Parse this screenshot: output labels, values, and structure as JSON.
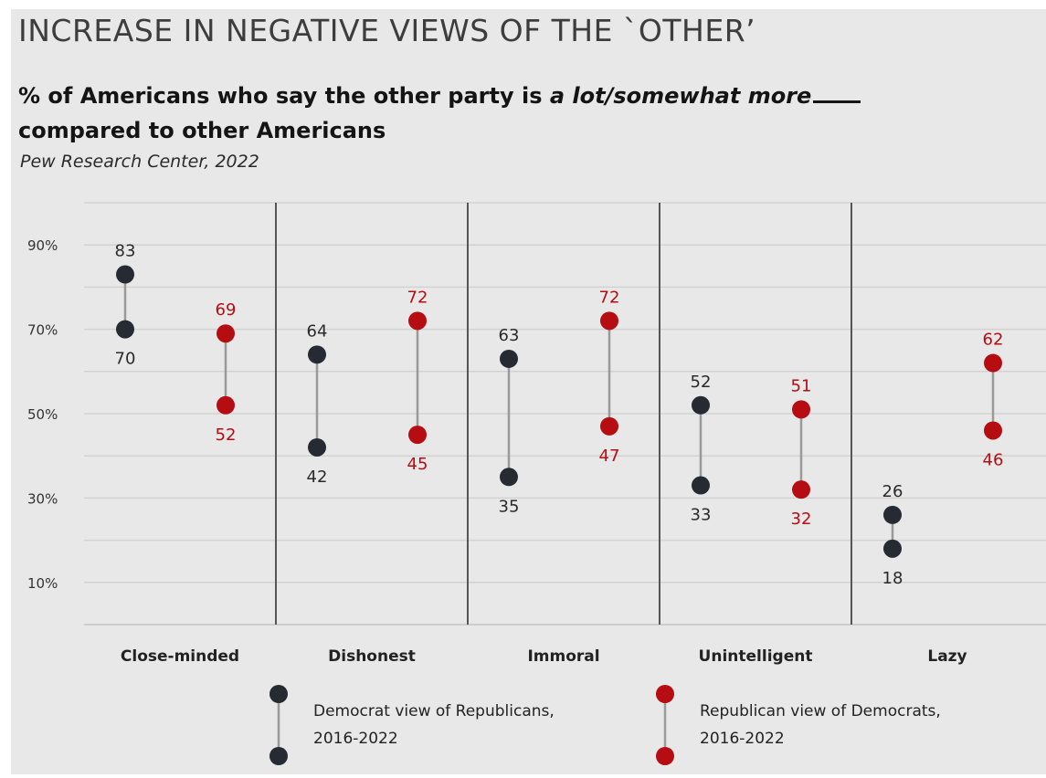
{
  "heading": {
    "title": "INCREASE IN NEGATIVE VIEWS OF THE `OTHER’",
    "subtitle_part1": "% of Americans who say the other party is ",
    "subtitle_emph": "a lot/somewhat more",
    "subtitle_part2": "compared to other Americans",
    "source": "Pew Research Center, 2022"
  },
  "colors": {
    "democrat": "#252a33",
    "republican": "#b50d12",
    "connector": "#9a9a9a",
    "grid": "#d2d2d2",
    "divider": "#555555",
    "background": "#e8e8e8"
  },
  "chart_data": {
    "type": "dumbbell",
    "categories": [
      "Close-minded",
      "Dishonest",
      "Immoral",
      "Unintelligent",
      "Lazy"
    ],
    "y_ticks": [
      10,
      30,
      50,
      70,
      90
    ],
    "y_tick_labels": [
      "10%",
      "30%",
      "50%",
      "70%",
      "90%"
    ],
    "ylim": [
      0,
      100
    ],
    "grid": true,
    "series": [
      {
        "name": "Democrat view of Republicans, 2016-2022",
        "start_2016": [
          70,
          42,
          35,
          33,
          18
        ],
        "end_2022": [
          83,
          64,
          63,
          52,
          26
        ]
      },
      {
        "name": "Republican view of Democrats, 2016-2022",
        "start_2016": [
          52,
          45,
          47,
          32,
          46
        ],
        "end_2022": [
          69,
          72,
          72,
          51,
          62
        ]
      }
    ],
    "legend": [
      {
        "line1": "Democrat view of Republicans,",
        "line2": "2016-2022"
      },
      {
        "line1": "Republican view of Democrats,",
        "line2": "2016-2022"
      }
    ],
    "legend_position": "bottom"
  }
}
